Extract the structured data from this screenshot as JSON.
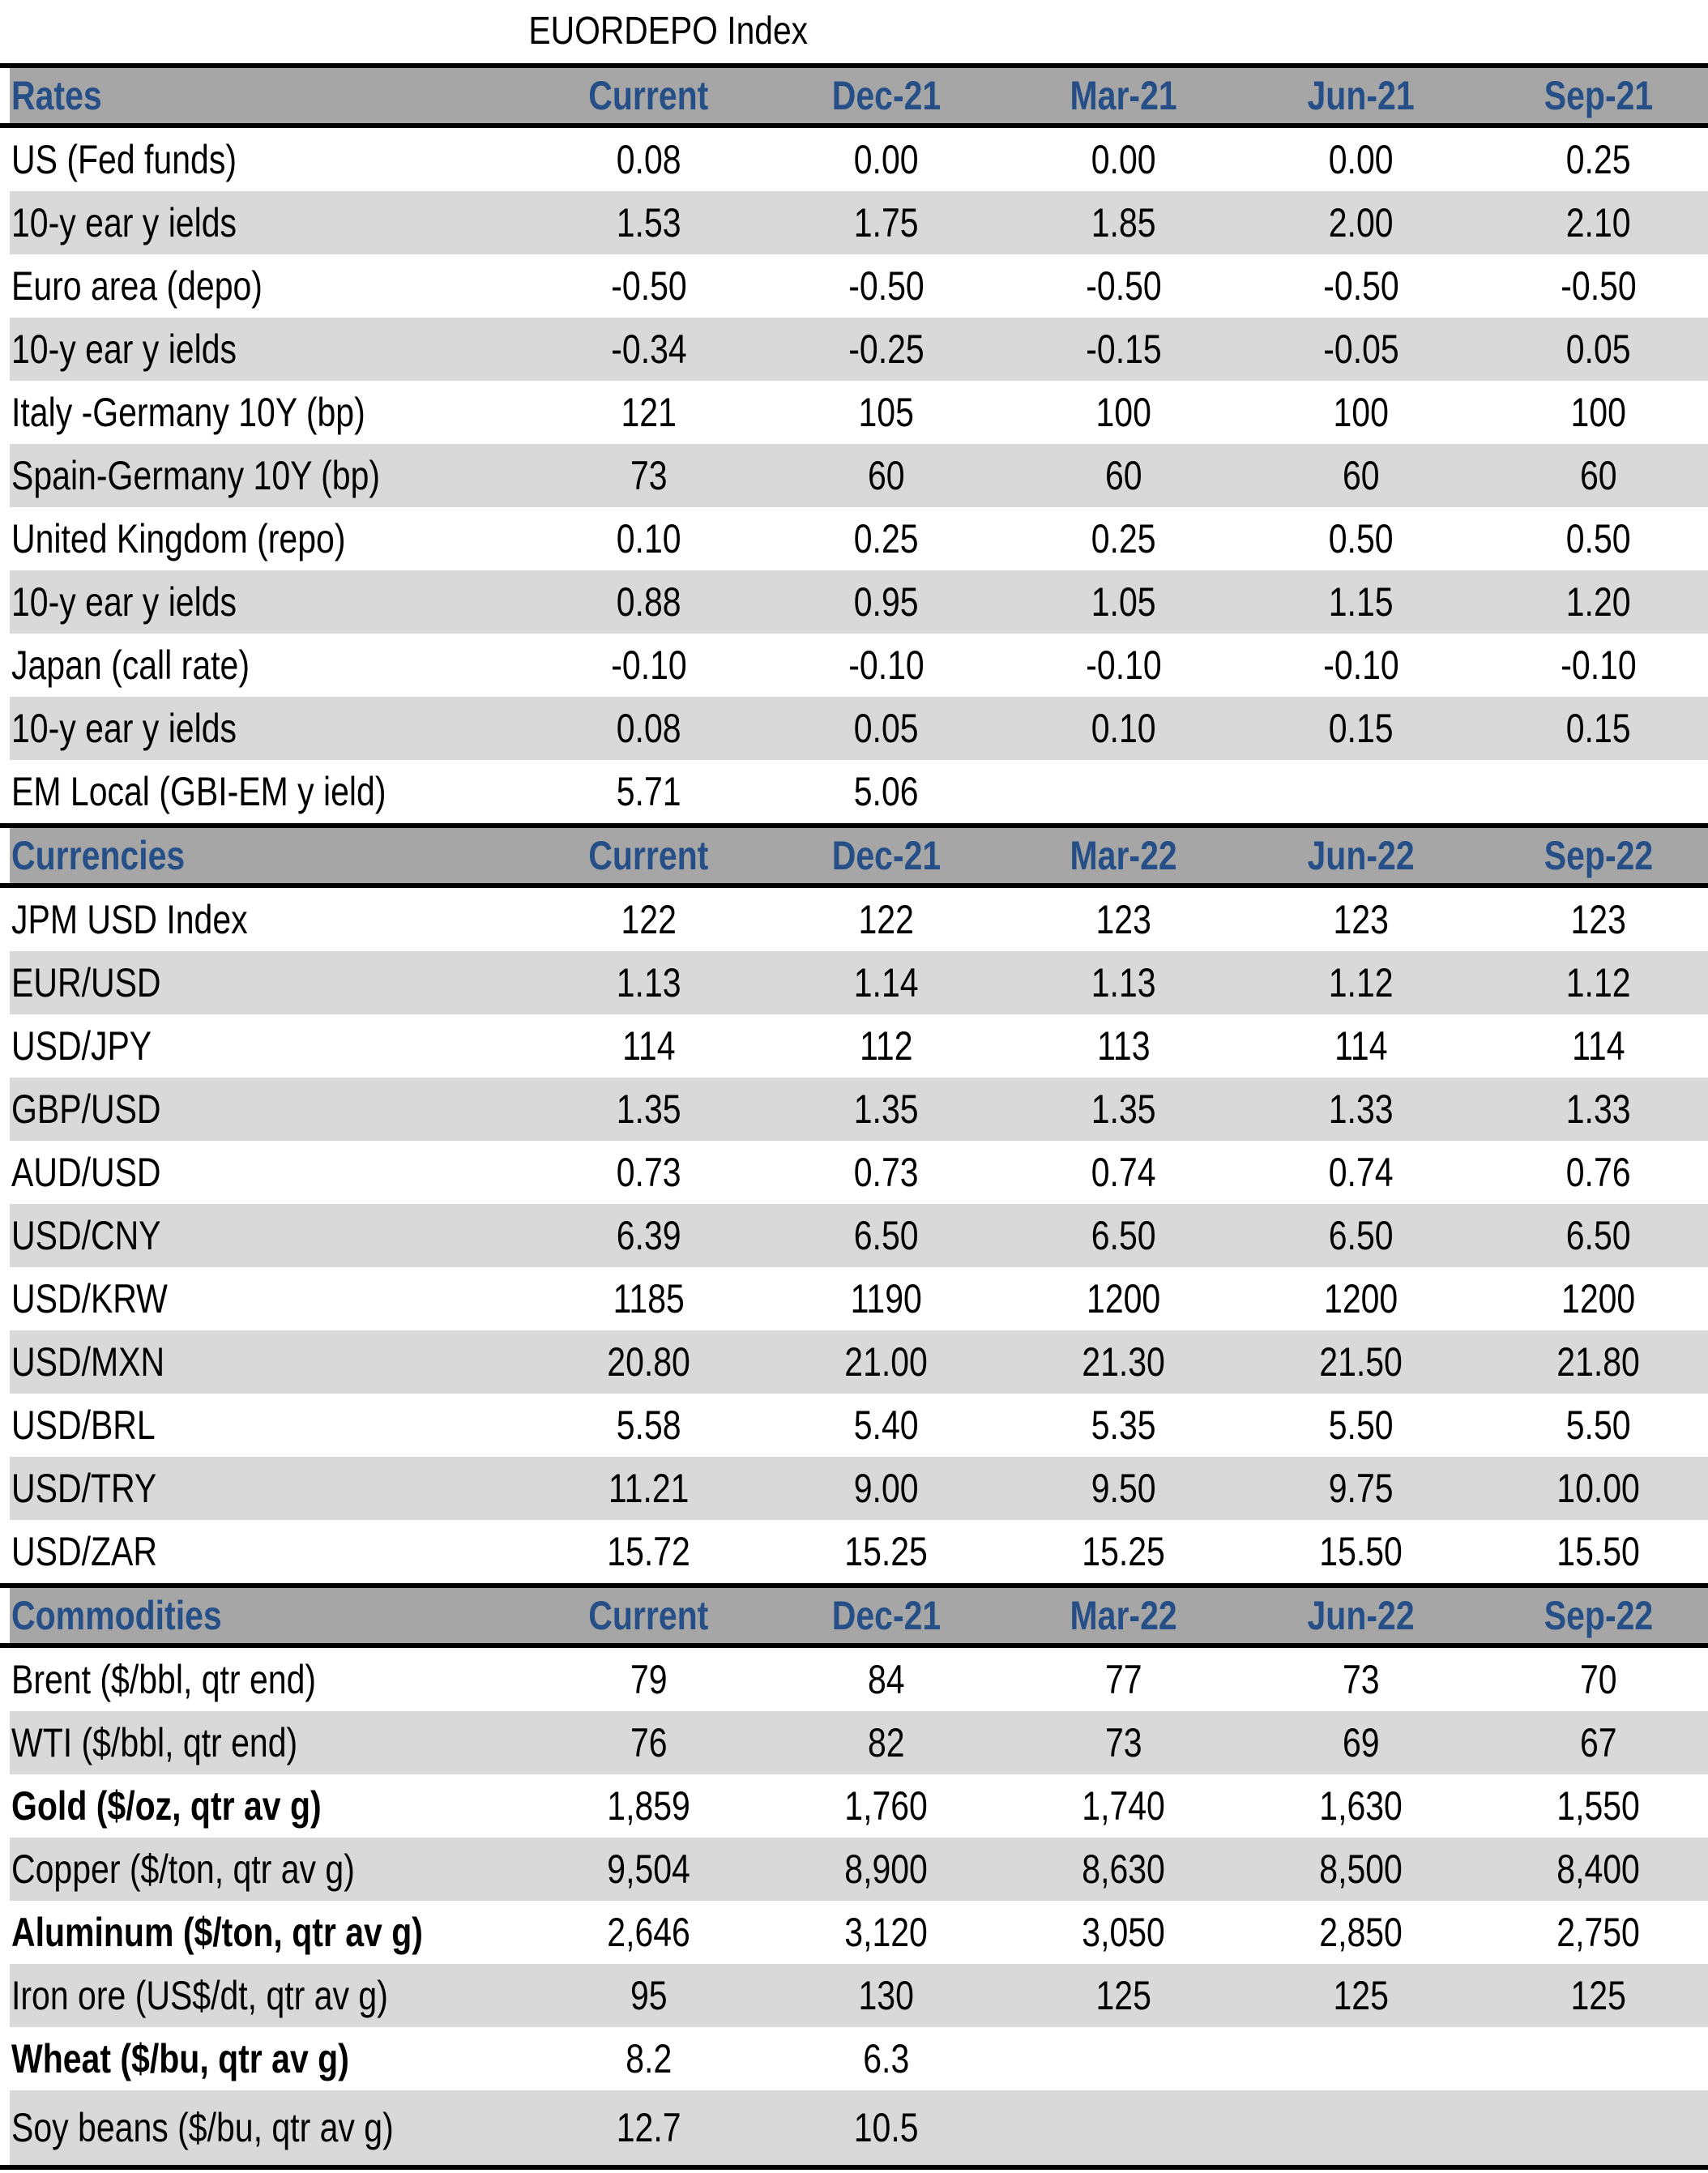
{
  "title": "EUORDEPO Index",
  "sections": [
    {
      "name": "Rates",
      "columns": [
        "Current",
        "Dec-21",
        "Mar-21",
        "Jun-21",
        "Sep-21"
      ],
      "rows": [
        {
          "label": "US (Fed funds)",
          "values": [
            "0.08",
            "0.00",
            "0.00",
            "0.00",
            "0.25"
          ]
        },
        {
          "label": "10-y ear y ields",
          "values": [
            "1.53",
            "1.75",
            "1.85",
            "2.00",
            "2.10"
          ]
        },
        {
          "label": "Euro area (depo)",
          "values": [
            "-0.50",
            "-0.50",
            "-0.50",
            "-0.50",
            "-0.50"
          ]
        },
        {
          "label": "10-y ear y ields",
          "values": [
            "-0.34",
            "-0.25",
            "-0.15",
            "-0.05",
            "0.05"
          ]
        },
        {
          "label": "Italy -Germany  10Y (bp)",
          "values": [
            "121",
            "105",
            "100",
            "100",
            "100"
          ]
        },
        {
          "label": "Spain-Germany  10Y (bp)",
          "values": [
            "73",
            "60",
            "60",
            "60",
            "60"
          ]
        },
        {
          "label": "United Kingdom (repo)",
          "values": [
            "0.10",
            "0.25",
            "0.25",
            "0.50",
            "0.50"
          ]
        },
        {
          "label": "10-y ear y ields",
          "values": [
            "0.88",
            "0.95",
            "1.05",
            "1.15",
            "1.20"
          ]
        },
        {
          "label": "Japan (call rate)",
          "values": [
            "-0.10",
            "-0.10",
            "-0.10",
            "-0.10",
            "-0.10"
          ]
        },
        {
          "label": "10-y ear y ields",
          "values": [
            "0.08",
            "0.05",
            "0.10",
            "0.15",
            "0.15"
          ]
        },
        {
          "label": "EM Local (GBI-EM y ield)",
          "values": [
            "5.71",
            "5.06",
            "",
            "",
            ""
          ]
        }
      ]
    },
    {
      "name": "Currencies",
      "columns": [
        "Current",
        "Dec-21",
        "Mar-22",
        "Jun-22",
        "Sep-22"
      ],
      "rows": [
        {
          "label": "JPM USD Index",
          "values": [
            "122",
            "122",
            "123",
            "123",
            "123"
          ]
        },
        {
          "label": "EUR/USD",
          "values": [
            "1.13",
            "1.14",
            "1.13",
            "1.12",
            "1.12"
          ]
        },
        {
          "label": "USD/JPY",
          "values": [
            "114",
            "112",
            "113",
            "114",
            "114"
          ]
        },
        {
          "label": "GBP/USD",
          "values": [
            "1.35",
            "1.35",
            "1.35",
            "1.33",
            "1.33"
          ]
        },
        {
          "label": "AUD/USD",
          "values": [
            "0.73",
            "0.73",
            "0.74",
            "0.74",
            "0.76"
          ]
        },
        {
          "label": "USD/CNY",
          "values": [
            "6.39",
            "6.50",
            "6.50",
            "6.50",
            "6.50"
          ]
        },
        {
          "label": "USD/KRW",
          "values": [
            "1185",
            "1190",
            "1200",
            "1200",
            "1200"
          ]
        },
        {
          "label": "USD/MXN",
          "values": [
            "20.80",
            "21.00",
            "21.30",
            "21.50",
            "21.80"
          ]
        },
        {
          "label": "USD/BRL",
          "values": [
            "5.58",
            "5.40",
            "5.35",
            "5.50",
            "5.50"
          ]
        },
        {
          "label": "USD/TRY",
          "values": [
            "11.21",
            "9.00",
            "9.50",
            "9.75",
            "10.00"
          ]
        },
        {
          "label": "USD/ZAR",
          "values": [
            "15.72",
            "15.25",
            "15.25",
            "15.50",
            "15.50"
          ]
        }
      ]
    },
    {
      "name": "Commodities",
      "columns": [
        "Current",
        "Dec-21",
        "Mar-22",
        "Jun-22",
        "Sep-22"
      ],
      "rows": [
        {
          "label": "Brent ($/bbl, qtr end)",
          "values": [
            "79",
            "84",
            "77",
            "73",
            "70"
          ]
        },
        {
          "label": "WTI ($/bbl, qtr end)",
          "values": [
            "76",
            "82",
            "73",
            "69",
            "67"
          ]
        },
        {
          "label": "Gold ($/oz, qtr av g)",
          "values": [
            "1,859",
            "1,760",
            "1,740",
            "1,630",
            "1,550"
          ],
          "bold": true
        },
        {
          "label": "Copper ($/ton, qtr av g)",
          "values": [
            "9,504",
            "8,900",
            "8,630",
            "8,500",
            "8,400"
          ]
        },
        {
          "label": "Aluminum ($/ton, qtr av g)",
          "values": [
            "2,646",
            "3,120",
            "3,050",
            "2,850",
            "2,750"
          ],
          "bold": true
        },
        {
          "label": "Iron ore (US$/dt, qtr av g)",
          "values": [
            "95",
            "130",
            "125",
            "125",
            "125"
          ]
        },
        {
          "label": "Wheat ($/bu, qtr av g)",
          "values": [
            "8.2",
            "6.3",
            "",
            "",
            ""
          ],
          "bold": true
        },
        {
          "label": "Soy beans ($/bu, qtr av g)",
          "values": [
            "12.7",
            "10.5",
            "",
            "",
            ""
          ]
        }
      ]
    }
  ]
}
